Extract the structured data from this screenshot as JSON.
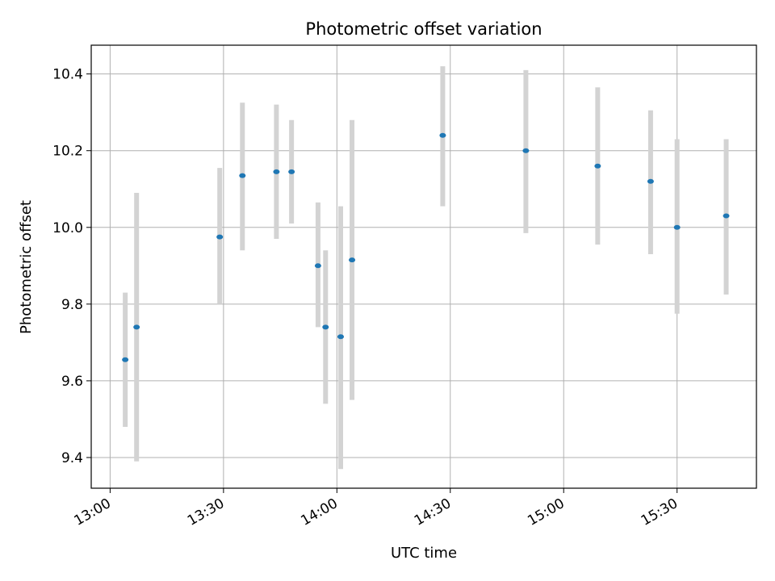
{
  "chart_data": {
    "type": "scatter",
    "title": "Photometric offset variation",
    "xlabel": "UTC time",
    "ylabel": "Photometric offset",
    "x_ticks": [
      "13:00",
      "13:30",
      "14:00",
      "14:30",
      "15:00",
      "15:30"
    ],
    "y_ticks": [
      "9.4",
      "9.6",
      "9.8",
      "10.0",
      "10.2",
      "10.4"
    ],
    "xlim": [
      "12:55",
      "15:51"
    ],
    "ylim": [
      9.32,
      10.475
    ],
    "grid": true,
    "colors": {
      "marker": "#1f77b4",
      "errorbar": "#d3d3d3",
      "grid": "#b0b0b0"
    },
    "points": [
      {
        "t": "13:04",
        "y": 9.655,
        "ylow": 9.48,
        "yhigh": 9.83
      },
      {
        "t": "13:07",
        "y": 9.74,
        "ylow": 9.39,
        "yhigh": 10.09
      },
      {
        "t": "13:29",
        "y": 9.975,
        "ylow": 9.8,
        "yhigh": 10.155
      },
      {
        "t": "13:35",
        "y": 10.135,
        "ylow": 9.94,
        "yhigh": 10.325
      },
      {
        "t": "13:44",
        "y": 10.145,
        "ylow": 9.97,
        "yhigh": 10.32
      },
      {
        "t": "13:48",
        "y": 10.145,
        "ylow": 10.01,
        "yhigh": 10.28
      },
      {
        "t": "13:55",
        "y": 9.9,
        "ylow": 9.74,
        "yhigh": 10.065
      },
      {
        "t": "13:57",
        "y": 9.74,
        "ylow": 9.54,
        "yhigh": 9.94
      },
      {
        "t": "14:01",
        "y": 9.715,
        "ylow": 9.37,
        "yhigh": 10.055
      },
      {
        "t": "14:04",
        "y": 9.915,
        "ylow": 9.55,
        "yhigh": 10.28
      },
      {
        "t": "14:28",
        "y": 10.24,
        "ylow": 10.055,
        "yhigh": 10.42
      },
      {
        "t": "14:50",
        "y": 10.2,
        "ylow": 9.985,
        "yhigh": 10.41
      },
      {
        "t": "15:09",
        "y": 10.16,
        "ylow": 9.955,
        "yhigh": 10.365
      },
      {
        "t": "15:23",
        "y": 10.12,
        "ylow": 9.93,
        "yhigh": 10.305
      },
      {
        "t": "15:30",
        "y": 10.0,
        "ylow": 9.775,
        "yhigh": 10.23
      },
      {
        "t": "15:43",
        "y": 10.03,
        "ylow": 9.825,
        "yhigh": 10.23
      }
    ]
  }
}
